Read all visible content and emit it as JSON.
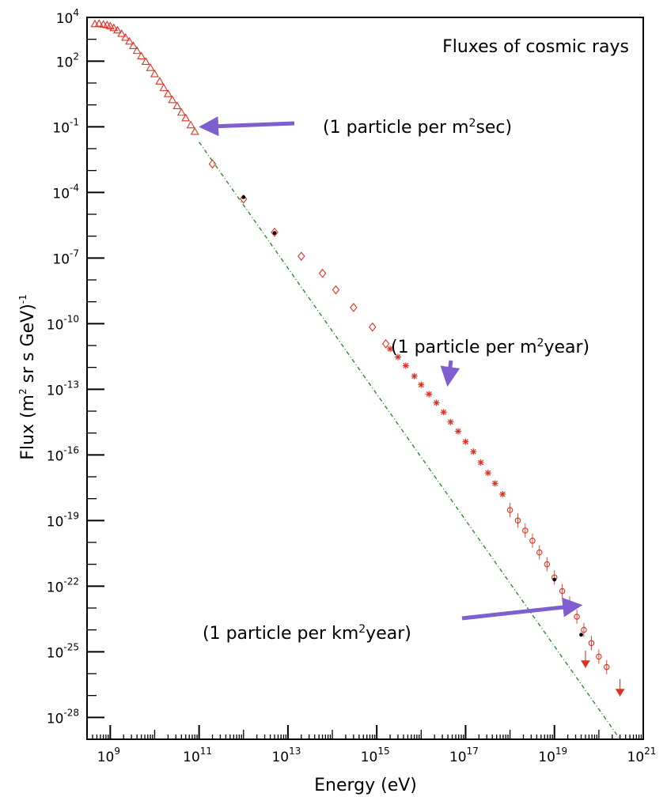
{
  "chart_data": {
    "type": "scatter",
    "title": "Fluxes of cosmic rays",
    "xlabel": "Energy (eV)",
    "ylabel": {
      "base": "Flux (m",
      "sup1": "2",
      "mid": " sr s GeV)",
      "sup2": "-1"
    },
    "x_scale": "log",
    "y_scale": "log",
    "xlim": [
      300000000.0,
      1e+21
    ],
    "ylim": [
      1e-29,
      10000.0
    ],
    "grid": false,
    "x_ticks": [
      {
        "base": "10",
        "exp": "9",
        "value": 1000000000.0
      },
      {
        "base": "10",
        "exp": "11",
        "value": 100000000000.0
      },
      {
        "base": "10",
        "exp": "13",
        "value": 10000000000000.0
      },
      {
        "base": "10",
        "exp": "15",
        "value": 1000000000000000.0
      },
      {
        "base": "10",
        "exp": "17",
        "value": 1e+17
      },
      {
        "base": "10",
        "exp": "19",
        "value": 1e+19
      },
      {
        "base": "10",
        "exp": "21",
        "value": 1e+21
      }
    ],
    "y_ticks": [
      {
        "base": "10",
        "exp": "4",
        "value": 10000.0
      },
      {
        "base": "10",
        "exp": "2",
        "value": 100.0
      },
      {
        "base": "10",
        "exp": "-1",
        "value": 0.1
      },
      {
        "base": "10",
        "exp": "-4",
        "value": 0.0001
      },
      {
        "base": "10",
        "exp": "-7",
        "value": 1e-07
      },
      {
        "base": "10",
        "exp": "-10",
        "value": 1e-10
      },
      {
        "base": "10",
        "exp": "-13",
        "value": 1e-13
      },
      {
        "base": "10",
        "exp": "-16",
        "value": 1e-16
      },
      {
        "base": "10",
        "exp": "-19",
        "value": 1e-19
      },
      {
        "base": "10",
        "exp": "-22",
        "value": 1e-22
      },
      {
        "base": "10",
        "exp": "-25",
        "value": 1e-25
      },
      {
        "base": "10",
        "exp": "-28",
        "value": 1e-28
      }
    ],
    "reference_line": {
      "color": "#2e8b2e",
      "points": [
        [
          100000000000.0,
          0.02
        ],
        [
          3e+20,
          1e-29
        ]
      ]
    },
    "series": [
      {
        "marker": "triangle",
        "color": "#e03020",
        "points": [
          [
            450000000.0,
            5000.0
          ],
          [
            560000000.0,
            5200.0
          ],
          [
            700000000.0,
            4800.0
          ],
          [
            850000000.0,
            4500.0
          ],
          [
            1000000000.0,
            4000.0
          ],
          [
            1200000000.0,
            3300.0
          ],
          [
            1450000000.0,
            2600.0
          ],
          [
            1800000000.0,
            1800.0
          ],
          [
            2200000000.0,
            1200.0
          ],
          [
            2700000000.0,
            800
          ],
          [
            3300000000.0,
            500
          ],
          [
            4000000000.0,
            300
          ],
          [
            5000000000.0,
            170
          ],
          [
            6300000000.0,
            95
          ],
          [
            8000000000.0,
            50
          ],
          [
            10000000000.0,
            26
          ],
          [
            13000000000.0,
            12
          ],
          [
            16000000000.0,
            6
          ],
          [
            20000000000.0,
            3.2
          ],
          [
            25000000000.0,
            1.7
          ],
          [
            32000000000.0,
            0.9
          ],
          [
            40000000000.0,
            0.45
          ],
          [
            50000000000.0,
            0.25
          ],
          [
            65000000000.0,
            0.12
          ],
          [
            80000000000.0,
            0.06
          ]
        ]
      },
      {
        "marker": "diamond",
        "color": "#e03020",
        "points": [
          [
            200000000000.0,
            0.002
          ],
          [
            1000000000000.0,
            5e-05
          ],
          [
            5000000000000.0,
            1.5e-06
          ],
          [
            20000000000000.0,
            1.2e-07
          ],
          [
            60000000000000.0,
            2e-08
          ],
          [
            120000000000000.0,
            3.5e-09
          ],
          [
            300000000000000.0,
            5.5e-10
          ],
          [
            800000000000000.0,
            7e-11
          ],
          [
            1600000000000000.0,
            1.2e-11
          ]
        ]
      },
      {
        "marker": "star",
        "color": "#e03020",
        "points": [
          [
            2000000000000000.0,
            7e-12
          ],
          [
            3000000000000000.0,
            3e-12
          ],
          [
            4500000000000000.0,
            1.2e-12
          ],
          [
            7000000000000000.0,
            4e-13
          ],
          [
            1e+16,
            1.6e-13
          ],
          [
            1.5e+16,
            6e-14
          ],
          [
            2.2e+16,
            2.4e-14
          ],
          [
            3.2e+16,
            9e-15
          ],
          [
            4.6e+16,
            3.2e-15
          ],
          [
            6.8e+16,
            1.2e-15
          ],
          [
            1e+17,
            4e-16
          ],
          [
            1.5e+17,
            1.4e-16
          ],
          [
            2.2e+17,
            4.5e-17
          ],
          [
            3.2e+17,
            1.5e-17
          ],
          [
            4.6e+17,
            5e-18
          ],
          [
            6.8e+17,
            1.6e-18
          ]
        ]
      },
      {
        "marker": "circle",
        "color": "#e03020",
        "points": [
          [
            1e+18,
            3e-19
          ],
          [
            1.5e+18,
            1e-19
          ],
          [
            2.2e+18,
            3.5e-20
          ],
          [
            3.2e+18,
            1.2e-20
          ],
          [
            4.6e+18,
            3.5e-21
          ],
          [
            6.8e+18,
            1e-21
          ],
          [
            1e+19,
            2.5e-22
          ],
          [
            1.5e+19,
            6e-23
          ],
          [
            2.2e+19,
            1.6e-23
          ],
          [
            3.2e+19,
            4e-24
          ],
          [
            4.6e+19,
            1e-24
          ],
          [
            6.8e+19,
            2.5e-25
          ],
          [
            1e+20,
            6e-26
          ],
          [
            1.5e+20,
            2e-26
          ]
        ]
      },
      {
        "marker": "filled-triangle",
        "color": "#e03020",
        "points": [
          [
            5e+19,
            3e-26
          ],
          [
            3e+20,
            1.5e-27
          ]
        ]
      },
      {
        "marker": "dot",
        "color": "#000000",
        "points": [
          [
            1000000000000.0,
            6e-05
          ],
          [
            5000000000000.0,
            1.4e-06
          ],
          [
            1e+19,
            2e-22
          ],
          [
            4e+19,
            6e-25
          ]
        ]
      }
    ],
    "annotations": [
      {
        "pre": "(1 particle per m",
        "sup": "2",
        "post": "sec)",
        "arrow_to": [
          120000000000.0,
          0.1
        ]
      },
      {
        "pre": "(1 particle per m",
        "sup": "2",
        "post": "year)",
        "arrow_to": [
          4e+16,
          2e-13
        ]
      },
      {
        "pre": "(1 particle per km",
        "sup": "2",
        "post": "year)",
        "arrow_to": [
          3.5e+19,
          1.3e-23
        ]
      }
    ],
    "colors": {
      "data": "#e03020",
      "reference_line": "#2e8b2e",
      "arrow": "#7f5fcf",
      "axis": "#000000"
    }
  }
}
